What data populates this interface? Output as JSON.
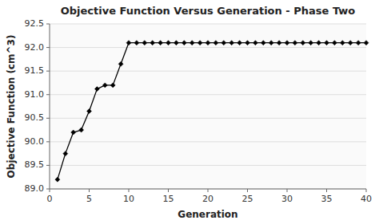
{
  "chart_data": {
    "type": "line",
    "title": "Objective Function Versus Generation - Phase Two",
    "x_label": "Generation",
    "y_label": "Objective Function (cm^3)",
    "x": [
      1,
      2,
      3,
      4,
      5,
      6,
      7,
      8,
      9,
      10,
      11,
      12,
      13,
      14,
      15,
      16,
      17,
      18,
      19,
      20,
      21,
      22,
      23,
      24,
      25,
      26,
      27,
      28,
      29,
      30,
      31,
      32,
      33,
      34,
      35,
      36,
      37,
      38,
      39,
      40
    ],
    "values": [
      89.2,
      89.75,
      90.2,
      90.25,
      90.65,
      91.12,
      91.2,
      91.2,
      91.65,
      92.1,
      92.1,
      92.1,
      92.1,
      92.1,
      92.1,
      92.1,
      92.1,
      92.1,
      92.1,
      92.1,
      92.1,
      92.1,
      92.1,
      92.1,
      92.1,
      92.1,
      92.1,
      92.1,
      92.1,
      92.1,
      92.1,
      92.1,
      92.1,
      92.1,
      92.1,
      92.1,
      92.1,
      92.1,
      92.1,
      92.1
    ],
    "color": "#000000",
    "marker": "diamond",
    "xlim": [
      0,
      40
    ],
    "ylim": [
      89,
      92.5
    ],
    "xticks": [
      0,
      5,
      10,
      15,
      20,
      25,
      30,
      35,
      40
    ],
    "yticks": [
      {
        "value": 89,
        "label": "89.0"
      },
      89.5,
      {
        "value": 90,
        "label": "90.0"
      },
      90.5,
      {
        "value": 91,
        "label": "91.0"
      },
      91.5,
      {
        "value": 92,
        "label": "92.0"
      },
      92.5
    ],
    "grid": "y"
  }
}
